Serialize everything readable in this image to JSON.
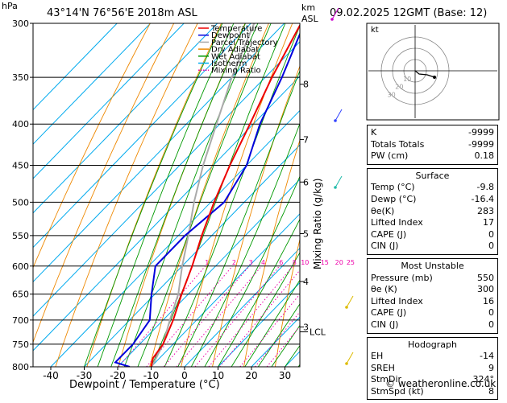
{
  "header": {
    "pressure_unit": "hPa",
    "location": "43°14'N  76°56'E  2018m  ASL",
    "km_unit": "km",
    "asl_unit": "ASL",
    "datetime": "09.02.2025  12GMT  (Base: 12)"
  },
  "chart_data": {
    "type": "skew-t",
    "xlabel": "Dewpoint / Temperature (°C)",
    "ylabel_right": "Mixing Ratio (g/kg)",
    "pressure_levels": [
      300,
      350,
      400,
      450,
      500,
      550,
      600,
      650,
      700,
      750,
      800
    ],
    "x_ticks": [
      -40,
      -30,
      -20,
      -10,
      0,
      10,
      20,
      30
    ],
    "xlim": [
      -45,
      34
    ],
    "km_ticks": [
      {
        "label": "8",
        "p": 357
      },
      {
        "label": "7",
        "p": 418
      },
      {
        "label": "6",
        "p": 472
      },
      {
        "label": "5",
        "p": 547
      },
      {
        "label": "4",
        "p": 627
      },
      {
        "label": "3",
        "p": 714
      }
    ],
    "lcl": {
      "label": "LCL",
      "p": 724
    },
    "mixing_ratio_labels": [
      "1",
      "2",
      "3",
      "4",
      "6",
      "8",
      "10",
      "15",
      "20",
      "25"
    ],
    "legend": [
      {
        "name": "Temperature",
        "color": "#ee0000"
      },
      {
        "name": "Dewpoint",
        "color": "#0000dd"
      },
      {
        "name": "Parcel Trajectory",
        "color": "#aaaaaa"
      },
      {
        "name": "Dry Adiabat",
        "color": "#ee8800"
      },
      {
        "name": "Wet Adiabat",
        "color": "#009900"
      },
      {
        "name": "Isotherm",
        "color": "#00aaee"
      },
      {
        "name": "Mixing Ratio",
        "color": "#ee00aa"
      }
    ],
    "temperature": [
      [
        800,
        -10
      ],
      [
        780,
        -12
      ],
      [
        750,
        -13
      ],
      [
        700,
        -17
      ],
      [
        650,
        -22
      ],
      [
        600,
        -27
      ],
      [
        550,
        -33
      ],
      [
        500,
        -39
      ],
      [
        450,
        -45
      ],
      [
        400,
        -51
      ],
      [
        350,
        -58
      ],
      [
        300,
        -65
      ]
    ],
    "dewpoint": [
      [
        800,
        -16.4
      ],
      [
        790,
        -22
      ],
      [
        750,
        -22
      ],
      [
        700,
        -24
      ],
      [
        650,
        -31
      ],
      [
        600,
        -38
      ],
      [
        550,
        -38
      ],
      [
        500,
        -36
      ],
      [
        450,
        -40
      ],
      [
        400,
        -48
      ],
      [
        350,
        -55
      ],
      [
        300,
        -64
      ]
    ],
    "parcel": [
      [
        800,
        -9.8
      ],
      [
        750,
        -13
      ],
      [
        700,
        -18
      ],
      [
        650,
        -23
      ],
      [
        600,
        -30
      ],
      [
        550,
        -37
      ],
      [
        500,
        -45
      ],
      [
        450,
        -53
      ],
      [
        400,
        -61
      ],
      [
        350,
        -70
      ],
      [
        300,
        -79
      ]
    ]
  },
  "hodograph": {
    "unit_label": "kt",
    "ring_labels": [
      "10",
      "20",
      "30"
    ]
  },
  "indices": {
    "k_label": "K",
    "k_value": "-9999",
    "tt_label": "Totals Totals",
    "tt_value": "-9999",
    "pw_label": "PW (cm)",
    "pw_value": "0.18"
  },
  "surface": {
    "title": "Surface",
    "temp_label": "Temp (°C)",
    "temp_value": "-9.8",
    "dewp_label": "Dewp (°C)",
    "dewp_value": "-16.4",
    "theta_label": "θe(K)",
    "theta_value": "283",
    "li_label": "Lifted Index",
    "li_value": "17",
    "cape_label": "CAPE (J)",
    "cape_value": "0",
    "cin_label": "CIN (J)",
    "cin_value": "0"
  },
  "most_unstable": {
    "title": "Most Unstable",
    "pressure_label": "Pressure (mb)",
    "pressure_value": "550",
    "theta_label": "θe (K)",
    "theta_value": "300",
    "li_label": "Lifted Index",
    "li_value": "16",
    "cape_label": "CAPE (J)",
    "cape_value": "0",
    "cin_label": "CIN (J)",
    "cin_value": "0"
  },
  "hodograph_stats": {
    "title": "Hodograph",
    "eh_label": "EH",
    "eh_value": "-14",
    "sreh_label": "SREH",
    "sreh_value": "9",
    "stmdir_label": "StmDir",
    "stmdir_value": "324°",
    "stmspd_label": "StmSpd (kt)",
    "stmspd_value": "8"
  },
  "footer": {
    "copyright": "© weatheronline.co.uk"
  },
  "colors": {
    "temperature": "#ee0000",
    "dewpoint": "#0000dd",
    "parcel": "#aaaaaa",
    "dry_adiabat": "#ee8800",
    "wet_adiabat": "#009900",
    "isotherm": "#00aaee",
    "mixing_ratio": "#ee00aa",
    "wind_barb": "#3344ff"
  }
}
